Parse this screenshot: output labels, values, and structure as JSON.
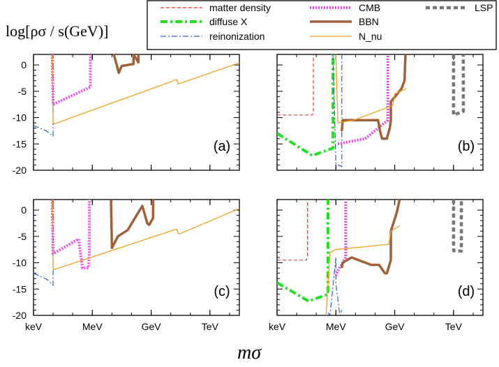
{
  "figure": {
    "ylabel": "log[ρσ / s(GeV)]",
    "xlabel": "mσ"
  },
  "legend": [
    {
      "name": "matter density",
      "color": "#e8382b",
      "dash": "5,3",
      "width": 1.2
    },
    {
      "name": "diffuse X",
      "color": "#22e022",
      "dash": "10,4,3,4",
      "width": 4
    },
    {
      "name": "reinonization",
      "color": "#2a5fd6",
      "dash": "8,3,2,3",
      "width": 1.2
    },
    {
      "name": "CMB",
      "color": "#ee44ee",
      "dash": "2,2",
      "width": 4
    },
    {
      "name": "BBN",
      "color": "#a0613a",
      "dash": "",
      "width": 3.5
    },
    {
      "name": "N_nu",
      "color": "#f0a020",
      "dash": "",
      "width": 1.3
    },
    {
      "name": "LSP",
      "color": "#777777",
      "dash": "6,4",
      "width": 4.5
    }
  ],
  "chart_data": [
    {
      "type": "line",
      "panel_label": "(a)",
      "xscale": "log",
      "xlim": [
        3,
        13.5
      ],
      "ylim": [
        -20,
        2
      ],
      "x_ticks": [
        {
          "pos": 3,
          "label": "keV"
        },
        {
          "pos": 6,
          "label": "MeV"
        },
        {
          "pos": 9,
          "label": "GeV"
        },
        {
          "pos": 12,
          "label": "TeV"
        }
      ],
      "y_ticks": [
        0,
        -5,
        -10,
        -15,
        -20
      ],
      "series": [
        {
          "name": "reinonization",
          "x": [
            3,
            3.65,
            4.0,
            4.0
          ],
          "y": [
            -11.5,
            -12.5,
            -13.5,
            2
          ]
        },
        {
          "name": "CMB",
          "x": [
            3.95,
            4.0,
            5.9,
            5.9
          ],
          "y": [
            2,
            -7.5,
            -4.2,
            2
          ]
        },
        {
          "name": "BBN",
          "x": [
            7.1,
            7.35,
            7.5,
            8.1,
            8.1,
            8.35,
            8.35
          ],
          "y": [
            2,
            -1.5,
            -0.2,
            0.2,
            2,
            0.5,
            2
          ]
        },
        {
          "name": "N_nu",
          "x": [
            3.95,
            4.0,
            4.05,
            10.3,
            10.4,
            13.5
          ],
          "y": [
            2,
            -11,
            -11.2,
            -2.8,
            -3.6,
            0.4
          ]
        }
      ]
    },
    {
      "type": "line",
      "panel_label": "(b)",
      "xscale": "log",
      "xlim": [
        3,
        13.5
      ],
      "ylim": [
        -20,
        2
      ],
      "x_ticks": [
        {
          "pos": 3,
          "label": "keV"
        },
        {
          "pos": 6,
          "label": "MeV"
        },
        {
          "pos": 9,
          "label": "GeV"
        },
        {
          "pos": 12,
          "label": "TeV"
        }
      ],
      "y_ticks": [
        0,
        -5,
        -10,
        -15,
        -20
      ],
      "series": [
        {
          "name": "matter density",
          "x": [
            3,
            4.8,
            4.85,
            4.85
          ],
          "y": [
            -9.5,
            -9.5,
            -9,
            2
          ]
        },
        {
          "name": "diffuse X",
          "x": [
            3,
            4.8,
            5.85,
            5.85
          ],
          "y": [
            -13,
            -17.2,
            -15.8,
            2
          ]
        },
        {
          "name": "reinonization",
          "x": [
            5.85,
            6.0,
            6.3,
            6.3
          ],
          "y": [
            2,
            -18.8,
            -19.3,
            2
          ]
        },
        {
          "name": "CMB",
          "x": [
            6.1,
            7.5,
            8.65,
            8.65
          ],
          "y": [
            -15,
            -14,
            -10.5,
            2
          ]
        },
        {
          "name": "BBN",
          "x": [
            6.3,
            6.35,
            6.8,
            7.05,
            7.9,
            8.15,
            8.25,
            8.35,
            8.45,
            8.5,
            8.6,
            8.75,
            8.8,
            8.8,
            9.35,
            9.5,
            9.55
          ],
          "y": [
            -12.6,
            -10.5,
            -10.5,
            -10.5,
            -10.5,
            -10.5,
            -12.5,
            -14,
            -14,
            -14,
            -14,
            -12,
            -10.5,
            -7,
            -4.5,
            -3,
            2
          ]
        },
        {
          "name": "N_nu",
          "x": [
            6.0,
            6.1,
            6.9,
            8.9,
            9.0,
            9.6
          ],
          "y": [
            2,
            -11,
            -10.5,
            -7.7,
            -5.5,
            -4.5
          ]
        },
        {
          "name": "LSP",
          "x": [
            12.0,
            12.0,
            12.5,
            12.5
          ],
          "y": [
            2,
            -9.5,
            -8.8,
            2
          ]
        }
      ]
    },
    {
      "type": "line",
      "panel_label": "(c)",
      "xscale": "log",
      "xlim": [
        3,
        13.5
      ],
      "ylim": [
        -20,
        2
      ],
      "x_ticks": [
        {
          "pos": 3,
          "label": "keV"
        },
        {
          "pos": 6,
          "label": "MeV"
        },
        {
          "pos": 9,
          "label": "GeV"
        },
        {
          "pos": 12,
          "label": "TeV"
        }
      ],
      "y_ticks": [
        0,
        -5,
        -10,
        -15,
        -20
      ],
      "series": [
        {
          "name": "reinonization",
          "x": [
            3,
            3.7,
            4.0,
            4.0
          ],
          "y": [
            -12,
            -13.2,
            -14.3,
            2
          ]
        },
        {
          "name": "CMB",
          "x": [
            3.95,
            4.0,
            5.3,
            5.5,
            5.8,
            5.85,
            5.85
          ],
          "y": [
            2,
            -8.3,
            -5.5,
            -11,
            -11,
            -8,
            2
          ]
        },
        {
          "name": "BBN",
          "x": [
            6.95,
            7.0,
            7.3,
            7.8,
            8.55,
            8.8,
            8.9,
            9.1,
            9.1
          ],
          "y": [
            2,
            -7.2,
            -5,
            -3.8,
            0.8,
            -2.5,
            -2.8,
            -1.5,
            2
          ]
        },
        {
          "name": "N_nu",
          "x": [
            3.95,
            4.0,
            4.05,
            10.3,
            10.4,
            13.5
          ],
          "y": [
            2,
            -11,
            -11.3,
            -3.6,
            -4.6,
            0.3
          ]
        }
      ]
    },
    {
      "type": "line",
      "panel_label": "(d)",
      "xscale": "log",
      "xlim": [
        3,
        13.5
      ],
      "ylim": [
        -20,
        2
      ],
      "x_ticks": [
        {
          "pos": 3,
          "label": "keV"
        },
        {
          "pos": 6,
          "label": "MeV"
        },
        {
          "pos": 9,
          "label": "GeV"
        },
        {
          "pos": 12,
          "label": "TeV"
        }
      ],
      "y_ticks": [
        0,
        -5,
        -10,
        -15,
        -20
      ],
      "series": [
        {
          "name": "matter density",
          "x": [
            3,
            4.5,
            4.55,
            4.55
          ],
          "y": [
            -9.5,
            -9.5,
            -9,
            2
          ]
        },
        {
          "name": "diffuse X",
          "x": [
            3,
            4.6,
            5.6,
            5.6
          ],
          "y": [
            -13.8,
            -17.3,
            -16,
            2
          ]
        },
        {
          "name": "reinonization",
          "x": [
            5.6,
            5.7,
            6.0,
            6.0,
            6.2,
            6.3
          ],
          "y": [
            -19.5,
            -20,
            -9,
            -14,
            -20,
            -19
          ]
        },
        {
          "name": "CMB",
          "x": [
            6.0,
            6.1,
            6.5,
            6.5
          ],
          "y": [
            -12.5,
            -11.5,
            -9,
            2
          ]
        },
        {
          "name": "BBN",
          "x": [
            6.3,
            6.35,
            6.8,
            7.8,
            8.2,
            8.5,
            8.6,
            8.8,
            8.8,
            9.1,
            9.25
          ],
          "y": [
            -11,
            -10,
            -9,
            -10.4,
            -10.4,
            -12,
            -12,
            -9.5,
            -4,
            -0.5,
            2
          ]
        },
        {
          "name": "N_nu",
          "x": [
            5.5,
            5.7,
            6.0,
            8.7,
            8.8,
            9.25
          ],
          "y": [
            -20,
            -8,
            -7.5,
            -6.5,
            -4,
            -3
          ]
        },
        {
          "name": "LSP",
          "x": [
            12.0,
            12.0,
            12.4,
            12.4
          ],
          "y": [
            2,
            -7.7,
            -7.8,
            2
          ]
        }
      ]
    }
  ]
}
